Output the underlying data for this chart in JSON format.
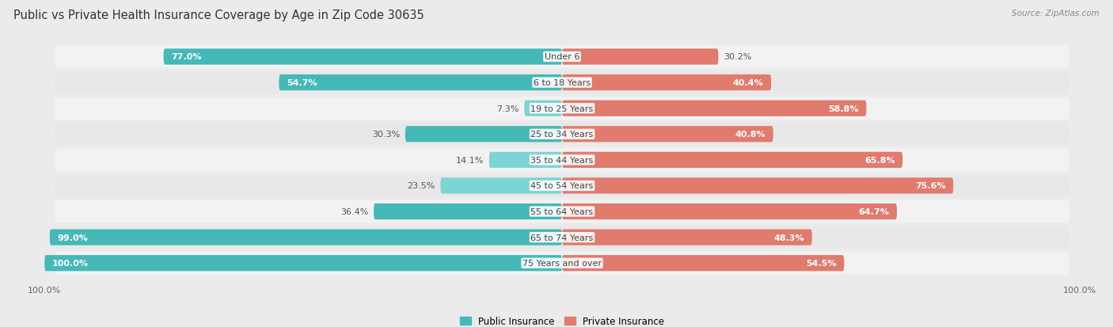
{
  "title": "Public vs Private Health Insurance Coverage by Age in Zip Code 30635",
  "source": "Source: ZipAtlas.com",
  "categories": [
    "Under 6",
    "6 to 18 Years",
    "19 to 25 Years",
    "25 to 34 Years",
    "35 to 44 Years",
    "45 to 54 Years",
    "55 to 64 Years",
    "65 to 74 Years",
    "75 Years and over"
  ],
  "public_values": [
    77.0,
    54.7,
    7.3,
    30.3,
    14.1,
    23.5,
    36.4,
    99.0,
    100.0
  ],
  "private_values": [
    30.2,
    40.4,
    58.8,
    40.8,
    65.8,
    75.6,
    64.7,
    48.3,
    54.5
  ],
  "public_color": "#45b8b8",
  "private_color": "#e07b6e",
  "public_color_light": "#7dd4d4",
  "private_color_light": "#eeaa9f",
  "background_color": "#ebebeb",
  "row_bg_color": "#f2f2f2",
  "row_bg_color2": "#e8e8e8",
  "title_fontsize": 10.5,
  "label_fontsize": 8,
  "category_fontsize": 8,
  "legend_fontsize": 8.5,
  "bar_height": 0.62,
  "max_value": 100.0,
  "axis_label_left": "100.0%",
  "axis_label_right": "100.0%"
}
